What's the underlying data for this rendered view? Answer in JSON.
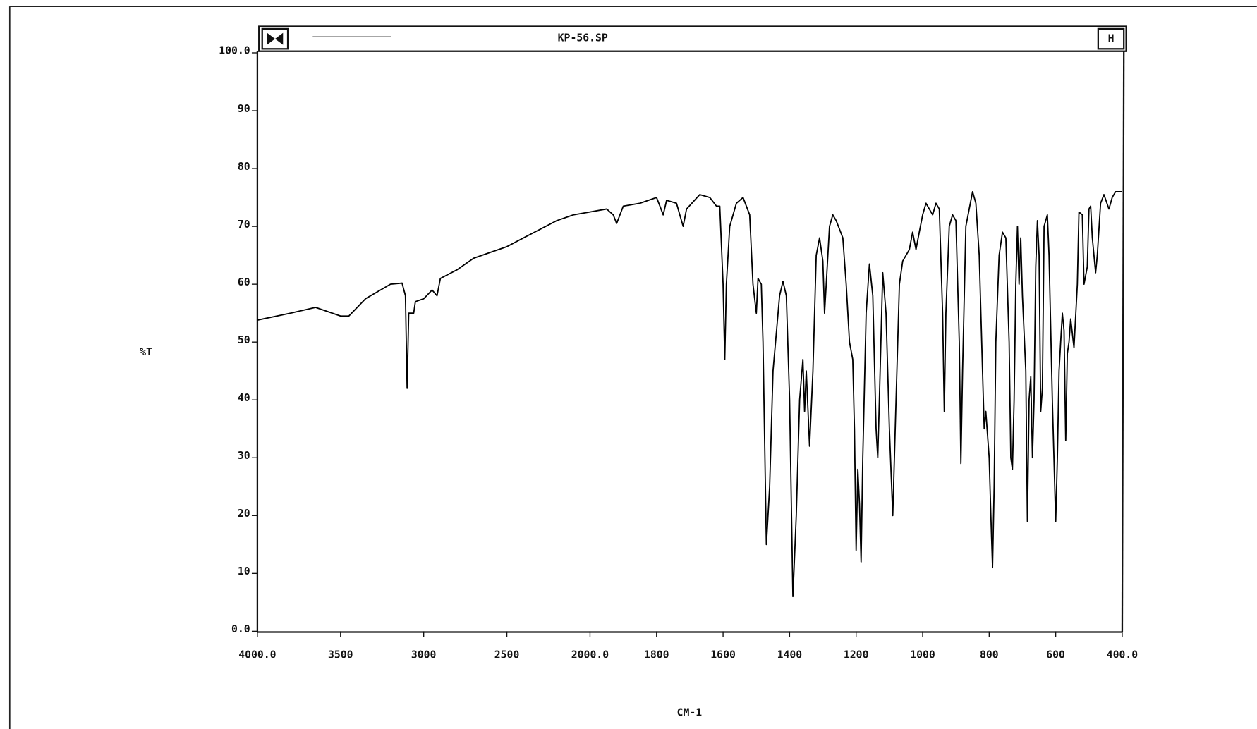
{
  "chart_data": {
    "type": "line",
    "title": "KP-56.SP",
    "x_label": "CM-1",
    "y_label": "%T",
    "xlim": [
      4000,
      400
    ],
    "ylim": [
      0,
      100
    ],
    "x_scale_break": 2000,
    "xticks": [
      {
        "value": 4000,
        "label": "4000.0"
      },
      3500,
      3000,
      2500,
      {
        "value": 2000,
        "label": "2000.0"
      },
      1800,
      1600,
      1400,
      1200,
      1000,
      800,
      600,
      {
        "value": 400,
        "label": "400.0"
      }
    ],
    "yticks": [
      {
        "value": 0,
        "label": "0.0"
      },
      10,
      20,
      30,
      40,
      50,
      60,
      70,
      80,
      90,
      {
        "value": 100,
        "label": "100.0"
      }
    ],
    "color": "#000000",
    "x": [
      4000,
      3800,
      3650,
      3500,
      3450,
      3350,
      3200,
      3130,
      3110,
      3100,
      3090,
      3060,
      3050,
      3000,
      2950,
      2920,
      2900,
      2800,
      2700,
      2600,
      2500,
      2400,
      2300,
      2200,
      2100,
      2000,
      1950,
      1930,
      1920,
      1900,
      1850,
      1800,
      1790,
      1780,
      1770,
      1740,
      1730,
      1720,
      1710,
      1670,
      1640,
      1620,
      1610,
      1600,
      1595,
      1590,
      1580,
      1560,
      1540,
      1520,
      1510,
      1500,
      1495,
      1485,
      1480,
      1470,
      1460,
      1450,
      1430,
      1420,
      1410,
      1400,
      1390,
      1380,
      1370,
      1360,
      1355,
      1350,
      1340,
      1330,
      1320,
      1310,
      1300,
      1295,
      1290,
      1280,
      1270,
      1260,
      1250,
      1240,
      1230,
      1220,
      1210,
      1205,
      1200,
      1195,
      1190,
      1185,
      1180,
      1170,
      1160,
      1150,
      1140,
      1135,
      1130,
      1120,
      1110,
      1100,
      1090,
      1080,
      1070,
      1060,
      1040,
      1030,
      1020,
      1010,
      1000,
      990,
      980,
      970,
      960,
      950,
      940,
      935,
      930,
      920,
      910,
      900,
      890,
      885,
      880,
      870,
      860,
      850,
      840,
      830,
      820,
      815,
      810,
      800,
      795,
      790,
      785,
      780,
      770,
      760,
      750,
      740,
      735,
      730,
      725,
      720,
      715,
      710,
      705,
      700,
      690,
      685,
      680,
      675,
      670,
      665,
      660,
      655,
      650,
      645,
      640,
      635,
      625,
      620,
      610,
      600,
      595,
      590,
      585,
      580,
      575,
      570,
      565,
      560,
      555,
      545,
      535,
      530,
      520,
      515,
      505,
      500,
      495,
      490,
      480,
      475,
      465,
      455,
      440,
      430,
      420,
      400
    ],
    "values": [
      53.8,
      55,
      56,
      54.5,
      54.5,
      57.5,
      60,
      60.2,
      58,
      42,
      55,
      55,
      57,
      57.5,
      59,
      58,
      61,
      62.5,
      64.5,
      65.5,
      66.5,
      68,
      69.5,
      71,
      72,
      72.5,
      73,
      72,
      70.5,
      73.5,
      74,
      75,
      73.5,
      72,
      74.5,
      74,
      72,
      70,
      73,
      75.5,
      75,
      73.5,
      73.5,
      60,
      47,
      60,
      70,
      74,
      75,
      72,
      60,
      55,
      61,
      60,
      50,
      15,
      25,
      45,
      58,
      60.5,
      58,
      40,
      6,
      20,
      40,
      47,
      38,
      45,
      32,
      45,
      65,
      68,
      64,
      55,
      60,
      70,
      72,
      71,
      69.5,
      68,
      60,
      50,
      47,
      35,
      14,
      28,
      22,
      12,
      30,
      55,
      63.5,
      58,
      35,
      30,
      40,
      62,
      55,
      35,
      20,
      40,
      60,
      64,
      66,
      69,
      66,
      69,
      72,
      74,
      73,
      72,
      74,
      73,
      55,
      38,
      55,
      70,
      72,
      71,
      50,
      29,
      45,
      70,
      73,
      76,
      74,
      65,
      45,
      35,
      38,
      30,
      20,
      11,
      25,
      50,
      65,
      69,
      68,
      50,
      30,
      28,
      40,
      60,
      70,
      60,
      68,
      58,
      45,
      19,
      40,
      44,
      30,
      40,
      63,
      71,
      65,
      38,
      42,
      70,
      72,
      65,
      40,
      19,
      30,
      45,
      50,
      55,
      52,
      33,
      48,
      50,
      54,
      49,
      60,
      72.5,
      72,
      60,
      63,
      73,
      73.5,
      68,
      62,
      65,
      74,
      75.5,
      73,
      75,
      76,
      76
    ]
  }
}
